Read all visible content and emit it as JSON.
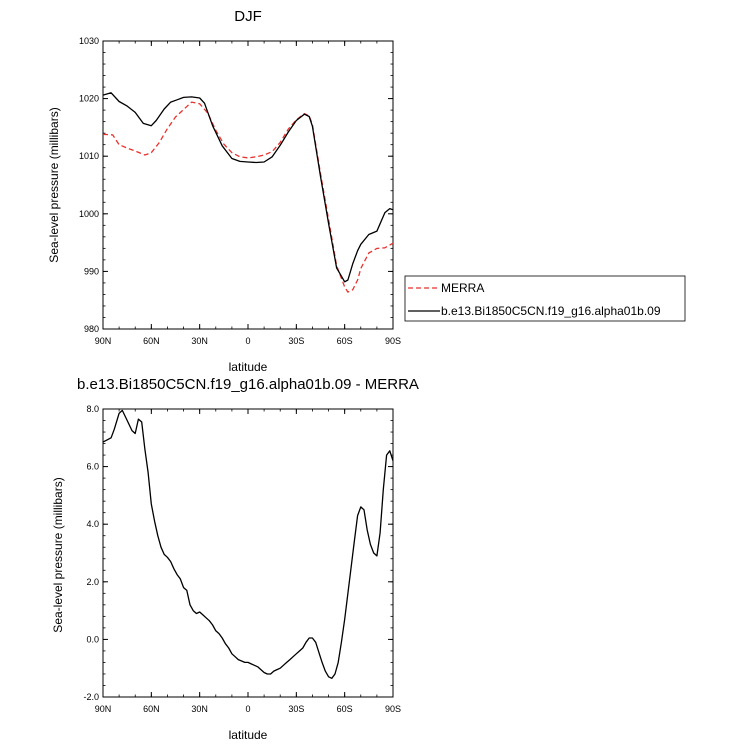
{
  "chart_data": [
    {
      "type": "line",
      "title": "DJF",
      "xlabel": "latitude",
      "ylabel": "Sea-level pressure (millibars)",
      "xlim": [
        90,
        -90
      ],
      "ylim": [
        980,
        1030
      ],
      "xticks": [
        {
          "v": 90,
          "label": "90N"
        },
        {
          "v": 60,
          "label": "60N"
        },
        {
          "v": 30,
          "label": "30N"
        },
        {
          "v": 0,
          "label": "0"
        },
        {
          "v": -30,
          "label": "30S"
        },
        {
          "v": -60,
          "label": "60S"
        },
        {
          "v": -90,
          "label": "90S"
        }
      ],
      "yticks": [
        {
          "v": 980,
          "label": "980"
        },
        {
          "v": 990,
          "label": "990"
        },
        {
          "v": 1000,
          "label": "1000"
        },
        {
          "v": 1010,
          "label": "1010"
        },
        {
          "v": 1020,
          "label": "1020"
        },
        {
          "v": 1030,
          "label": "1030"
        }
      ],
      "legend": {
        "placement": "right"
      },
      "series": [
        {
          "name": "MERRA",
          "color": "#e8322e",
          "dash": true,
          "x": [
            90,
            84,
            80,
            75,
            70,
            64,
            60,
            55,
            50,
            45,
            40,
            35,
            30,
            25,
            20,
            15,
            10,
            5,
            0,
            -5,
            -10,
            -15,
            -20,
            -25,
            -30,
            -35,
            -38,
            -40,
            -45,
            -50,
            -55,
            -60,
            -62,
            -65,
            -68,
            -70,
            -75,
            -80,
            -85,
            -90
          ],
          "y": [
            1013.8,
            1013.7,
            1012.0,
            1011.4,
            1010.9,
            1010.2,
            1010.6,
            1012.4,
            1014.8,
            1016.8,
            1018.1,
            1019.4,
            1019.1,
            1017.5,
            1014.5,
            1012.1,
            1010.6,
            1009.9,
            1009.7,
            1009.9,
            1010.2,
            1010.8,
            1012.4,
            1014.7,
            1016.3,
            1017.4,
            1017.0,
            1015.5,
            1007.0,
            999.0,
            991.0,
            987.3,
            986.4,
            986.8,
            988.5,
            990.5,
            993.2,
            994.0,
            994.1,
            994.9
          ]
        },
        {
          "name": "b.e13.Bi1850C5CN.f19_g16.alpha01b.09",
          "color": "#000000",
          "dash": false,
          "x": [
            90,
            85,
            80,
            75,
            70,
            65,
            60,
            57,
            52,
            48,
            44,
            40,
            35,
            30,
            27,
            22,
            16,
            10,
            5,
            0,
            -5,
            -10,
            -15,
            -20,
            -25,
            -30,
            -35,
            -38,
            -40,
            -45,
            -50,
            -55,
            -60,
            -62,
            -65,
            -68,
            -70,
            -75,
            -80,
            -85,
            -88,
            -90
          ],
          "y": [
            1020.6,
            1021.0,
            1019.5,
            1018.7,
            1017.6,
            1015.7,
            1015.3,
            1016.2,
            1018.2,
            1019.4,
            1019.8,
            1020.2,
            1020.3,
            1020.1,
            1019.2,
            1015.3,
            1011.8,
            1009.6,
            1009.1,
            1009.0,
            1008.9,
            1009.0,
            1009.9,
            1011.9,
            1014.2,
            1016.2,
            1017.3,
            1016.9,
            1015.2,
            1006.5,
            998.3,
            990.6,
            988.2,
            988.5,
            991.3,
            993.6,
            994.7,
            996.4,
            997.0,
            1000.2,
            1000.9,
            1000.7
          ]
        }
      ]
    },
    {
      "type": "line",
      "title": "b.e13.Bi1850C5CN.f19_g16.alpha01b.09 - MERRA",
      "xlabel": "latitude",
      "ylabel": "Sea-level pressure (millibars)",
      "xlim": [
        90,
        -90
      ],
      "ylim": [
        -2,
        8
      ],
      "xticks": [
        {
          "v": 90,
          "label": "90N"
        },
        {
          "v": 60,
          "label": "60N"
        },
        {
          "v": 30,
          "label": "30N"
        },
        {
          "v": 0,
          "label": "0"
        },
        {
          "v": -30,
          "label": "30S"
        },
        {
          "v": -60,
          "label": "60S"
        },
        {
          "v": -90,
          "label": "90S"
        }
      ],
      "yticks": [
        {
          "v": -2,
          "label": "-2.0"
        },
        {
          "v": 0,
          "label": "0.0"
        },
        {
          "v": 2,
          "label": "2.0"
        },
        {
          "v": 4,
          "label": "4.0"
        },
        {
          "v": 6,
          "label": "6.0"
        },
        {
          "v": 8,
          "label": "8.0"
        }
      ],
      "series": [
        {
          "color": "#000000",
          "x": [
            90,
            85,
            83,
            80,
            78,
            75,
            72,
            70,
            68,
            66,
            64,
            62,
            60,
            58,
            56,
            54,
            52,
            50,
            48,
            46,
            44,
            42,
            40,
            38,
            36,
            34,
            32,
            30,
            28,
            26,
            24,
            22,
            20,
            18,
            16,
            14,
            12,
            10,
            8,
            6,
            4,
            2,
            0,
            -2,
            -4,
            -6,
            -8,
            -10,
            -12,
            -14,
            -16,
            -18,
            -20,
            -22,
            -24,
            -26,
            -28,
            -30,
            -32,
            -34,
            -36,
            -38,
            -40,
            -42,
            -44,
            -46,
            -48,
            -50,
            -52,
            -54,
            -56,
            -58,
            -60,
            -62,
            -64,
            -66,
            -68,
            -70,
            -72,
            -74,
            -76,
            -78,
            -80,
            -82,
            -84,
            -86,
            -88,
            -90
          ],
          "y": [
            6.85,
            7.0,
            7.3,
            7.85,
            7.95,
            7.6,
            7.25,
            7.15,
            7.65,
            7.55,
            6.6,
            5.8,
            4.7,
            4.1,
            3.6,
            3.2,
            2.95,
            2.85,
            2.7,
            2.45,
            2.25,
            2.1,
            1.8,
            1.7,
            1.2,
            1.0,
            0.9,
            0.95,
            0.85,
            0.75,
            0.65,
            0.5,
            0.3,
            0.2,
            0.05,
            -0.15,
            -0.3,
            -0.5,
            -0.6,
            -0.7,
            -0.75,
            -0.8,
            -0.8,
            -0.85,
            -0.9,
            -0.95,
            -1.05,
            -1.15,
            -1.2,
            -1.2,
            -1.1,
            -1.05,
            -1.0,
            -0.9,
            -0.8,
            -0.7,
            -0.6,
            -0.5,
            -0.4,
            -0.3,
            -0.1,
            0.05,
            0.05,
            -0.1,
            -0.45,
            -0.8,
            -1.1,
            -1.3,
            -1.35,
            -1.2,
            -0.8,
            -0.1,
            0.7,
            1.6,
            2.5,
            3.4,
            4.3,
            4.6,
            4.5,
            3.8,
            3.3,
            3.0,
            2.9,
            3.7,
            5.2,
            6.4,
            6.55,
            6.2
          ]
        }
      ]
    }
  ]
}
